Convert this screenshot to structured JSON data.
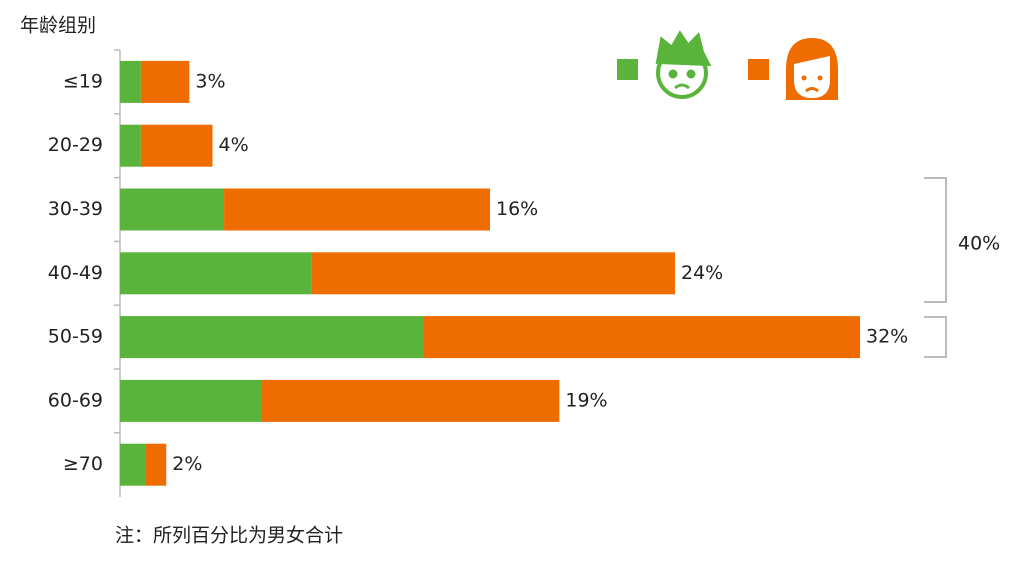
{
  "chart_data": {
    "type": "stacked-barh",
    "title": "年龄组别",
    "categories": [
      "≤19",
      "20-29",
      "30-39",
      "40-49",
      "50-59",
      "60-69",
      "≥70"
    ],
    "series": [
      {
        "color": "#5ab43c",
        "values": [
          0.9,
          0.9,
          4.5,
          8.3,
          13.1,
          6.1,
          1.1
        ]
      },
      {
        "color": "#ee6c00",
        "values": [
          2.1,
          3.1,
          11.5,
          15.7,
          18.9,
          12.9,
          0.9
        ]
      }
    ],
    "total_labels": [
      "3%",
      "4%",
      "16%",
      "24%",
      "32%",
      "19%",
      "2%"
    ],
    "annotation": "40%",
    "note": "注：所列百分比为男女合计"
  }
}
